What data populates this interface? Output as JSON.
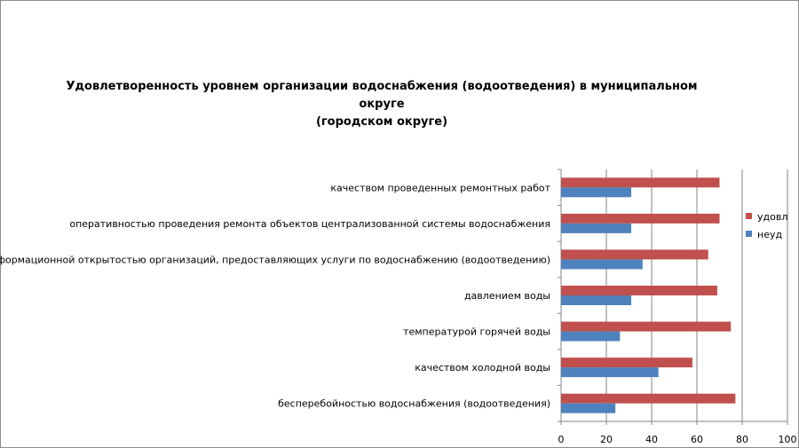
{
  "chart_data": {
    "type": "bar",
    "orientation": "horizontal",
    "title": "Удовлетворенность уровнем организации водоснабжения (водоотведения) в муниципальном округе (городском округе)",
    "title_lines": [
      "Удовлетворенность уровнем организации водоснабжения (водоотведения) в муниципальном округе",
      "(городском округе)"
    ],
    "categories": [
      "качеством проведенных ремонтных работ",
      "оперативностью проведения ремонта объектов централизованной системы водоснабжения",
      "информационной открытостью организаций, предоставляющих услуги по водоснабжению (водоотведению)",
      "давлением воды",
      "температурой горячей воды",
      "качеством холодной воды",
      "бесперебойностью водоснабжения (водоотведения)"
    ],
    "series": [
      {
        "name": "удовл",
        "color": "#c0504d",
        "values": [
          70,
          70,
          65,
          69,
          75,
          58,
          77
        ]
      },
      {
        "name": "неуд",
        "color": "#4f81bd",
        "values": [
          31,
          31,
          36,
          31,
          26,
          43,
          24
        ]
      }
    ],
    "xlim": [
      0,
      100
    ],
    "xticks": [
      0,
      20,
      40,
      60,
      80,
      100
    ],
    "grid": true,
    "legend_position": "right"
  }
}
